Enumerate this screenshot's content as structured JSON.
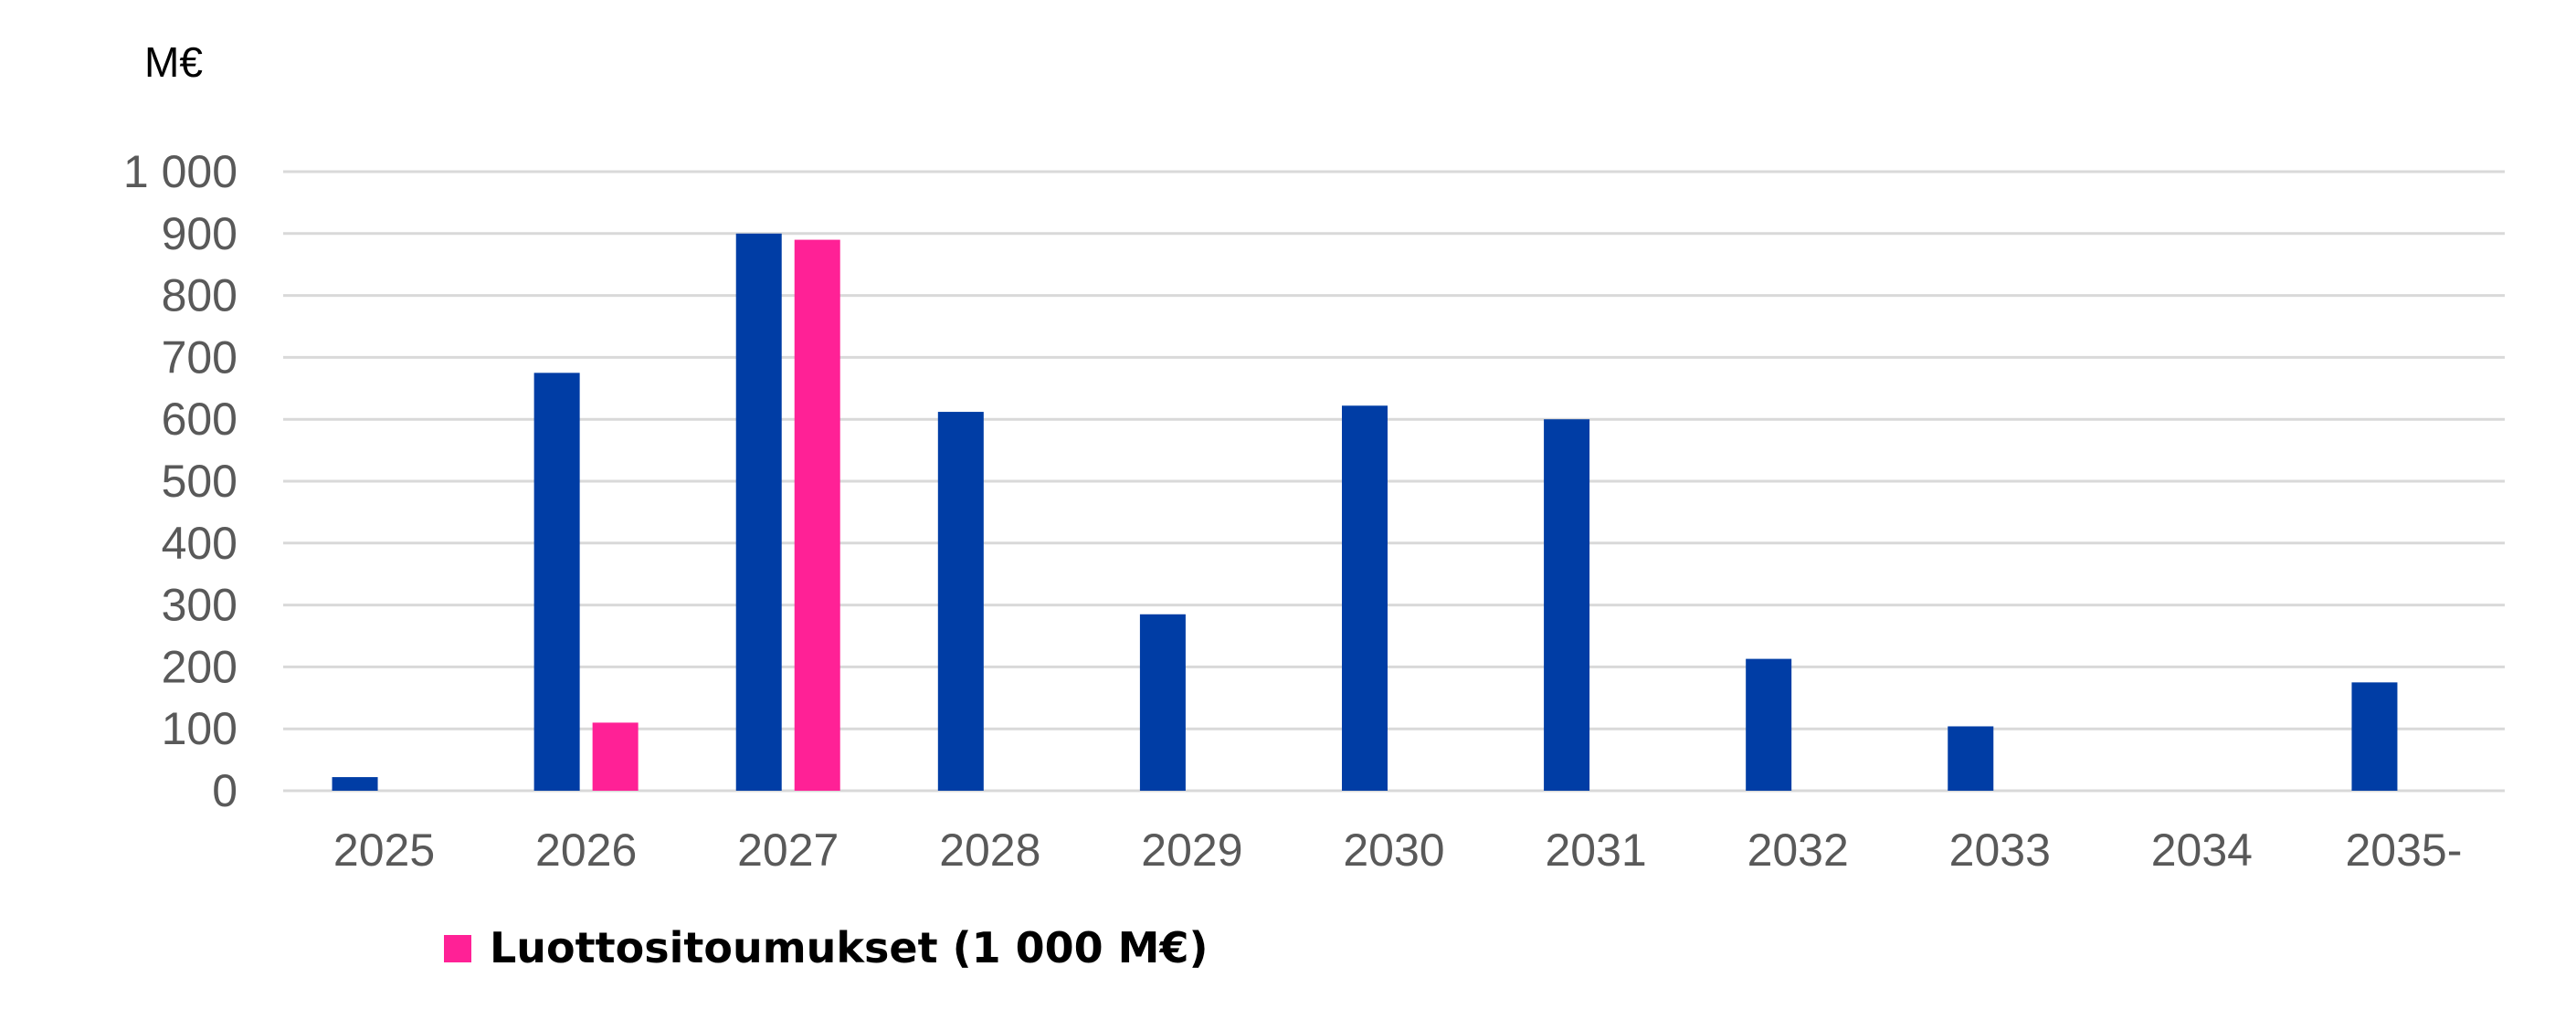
{
  "chart_data": {
    "type": "bar",
    "ylabel": "M€",
    "ylim": [
      0,
      1000
    ],
    "yticks": [
      "0",
      "100",
      "200",
      "300",
      "400",
      "500",
      "600",
      "700",
      "800",
      "900",
      "1 000"
    ],
    "ytick_values": [
      0,
      100,
      200,
      300,
      400,
      500,
      600,
      700,
      800,
      900,
      1000
    ],
    "categories": [
      "2025",
      "2026",
      "2027",
      "2028",
      "2029",
      "2030",
      "2031",
      "2032",
      "2033",
      "2034",
      "2035-"
    ],
    "series": [
      {
        "color": "#003DA5",
        "values": [
          22,
          675,
          900,
          612,
          285,
          622,
          600,
          213,
          104,
          0,
          175
        ]
      },
      {
        "name": "Luottositoumukset (1 000 M€)",
        "color": "#FF2196",
        "values": [
          null,
          110,
          890,
          null,
          null,
          null,
          null,
          null,
          null,
          null,
          null
        ]
      }
    ],
    "grid": true,
    "legend": "bottom-left"
  }
}
